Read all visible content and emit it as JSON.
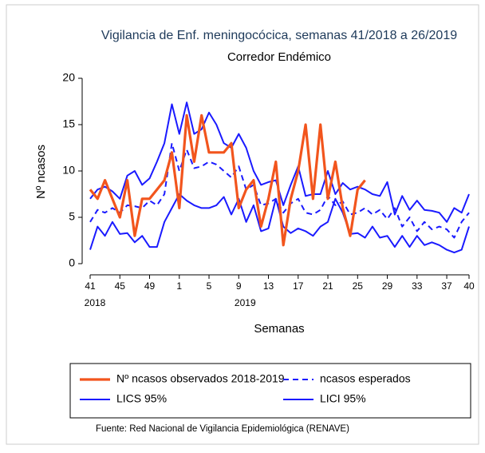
{
  "chart_data": {
    "type": "line",
    "title": "Vigilancia de Enf. meningocócica, semanas 41/2018 a 26/2019",
    "subtitle": "Corredor Endémico",
    "y_label": "Nº ncasos",
    "x_label": "Semanas",
    "x_sublabels": [
      "2018",
      "2019"
    ],
    "source": "Fuente: Red Nacional de Vigilancia Epidemiológica (RENAVE)",
    "categories": [
      "41",
      null,
      null,
      null,
      "45",
      null,
      null,
      null,
      "49",
      null,
      null,
      null,
      "1",
      null,
      null,
      null,
      "5",
      null,
      null,
      null,
      "9",
      null,
      null,
      null,
      "13",
      null,
      null,
      null,
      "17",
      null,
      null,
      null,
      "21",
      null,
      null,
      null,
      "25",
      null,
      null,
      null,
      "29",
      null,
      null,
      null,
      "33",
      null,
      null,
      null,
      "37",
      null,
      null,
      "40"
    ],
    "ylim": [
      0,
      20
    ],
    "yticks": [
      0,
      5,
      10,
      15,
      20
    ],
    "series": [
      {
        "name": "Nº ncasos observados 2018-2019",
        "color": "#f2551d",
        "style": "solid",
        "values": [
          8,
          7,
          9,
          7,
          5,
          9,
          3,
          7,
          7,
          8,
          9,
          12,
          6,
          16,
          11,
          16,
          12,
          12,
          12,
          13,
          6,
          8,
          9,
          4,
          7,
          11,
          2,
          7,
          10,
          15,
          7,
          15,
          7,
          11,
          6,
          3,
          8,
          9,
          null,
          null,
          null,
          null,
          null,
          null,
          null,
          null,
          null,
          null,
          null,
          null,
          null,
          null
        ]
      },
      {
        "name": "ncasos esperados",
        "color": "#1a1aff",
        "style": "dashed",
        "values": [
          4.5,
          5.8,
          5.5,
          6,
          5.5,
          6.3,
          6.2,
          6,
          6.8,
          6.3,
          7.5,
          13,
          10,
          12.3,
          10.3,
          10.5,
          11,
          10.7,
          10,
          9.3,
          10.5,
          8,
          8.5,
          6.3,
          6.5,
          7,
          5.5,
          6.5,
          7,
          5.5,
          5.3,
          5.8,
          7.3,
          6.3,
          6.7,
          5.3,
          5.5,
          6,
          5.3,
          5.8,
          4.8,
          6,
          4,
          5,
          3.5,
          4.5,
          3.7,
          4,
          3.7,
          2.8,
          4.5,
          5.5
        ]
      },
      {
        "name": "LICS 95%",
        "color": "#1a1aff",
        "style": "solid",
        "values": [
          7,
          8,
          8.3,
          7.8,
          7,
          9.5,
          10,
          8.5,
          9.2,
          11,
          13,
          17.2,
          14,
          17.4,
          14,
          14.5,
          16.3,
          15,
          13,
          12.5,
          14,
          12.5,
          10,
          8.5,
          8.8,
          9,
          6.3,
          8.5,
          10.5,
          7.3,
          7.5,
          7.5,
          10,
          7.5,
          8.7,
          8,
          8.3,
          8,
          7.5,
          7.3,
          8.8,
          5.3,
          7.3,
          5.8,
          6.8,
          5.8,
          5.7,
          5.5,
          4.5,
          6,
          5.5,
          7.5
        ]
      },
      {
        "name": "LICI 95%",
        "color": "#1a1aff",
        "style": "solid",
        "values": [
          1.5,
          4,
          3,
          4.5,
          3.2,
          3.3,
          2.3,
          3,
          1.8,
          1.8,
          4.5,
          6,
          7.5,
          6.8,
          6.3,
          6,
          6,
          6.3,
          7.2,
          5.3,
          7,
          4.5,
          6.3,
          3.5,
          3.8,
          7,
          4,
          3.3,
          3.8,
          3.5,
          3,
          4,
          4.5,
          7,
          5.5,
          3.2,
          3.3,
          2.8,
          4,
          2.8,
          3,
          1.8,
          3,
          1.8,
          3,
          2,
          2.3,
          2,
          1.5,
          1.2,
          1.5,
          4
        ]
      }
    ]
  }
}
